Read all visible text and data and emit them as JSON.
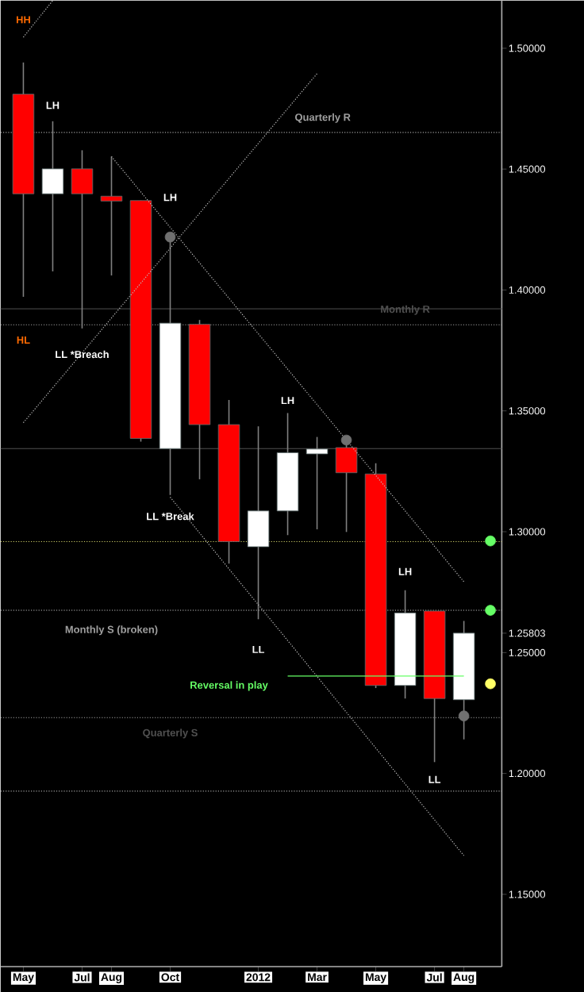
{
  "chart_data": {
    "type": "candlestick",
    "x": [
      "2011-05",
      "2011-06",
      "2011-07",
      "2011-08",
      "2011-09",
      "2011-10",
      "2011-11",
      "2011-12",
      "2012-01",
      "2012-02",
      "2012-03",
      "2012-04",
      "2012-05",
      "2012-06",
      "2012-07",
      "2012-08"
    ],
    "ohlc": [
      [
        1.481,
        1.4941,
        1.3972,
        1.4398
      ],
      [
        1.4398,
        1.4698,
        1.4077,
        1.4501
      ],
      [
        1.4501,
        1.4578,
        1.3841,
        1.4398
      ],
      [
        1.4388,
        1.4552,
        1.406,
        1.4368
      ],
      [
        1.437,
        1.437,
        1.3373,
        1.3386
      ],
      [
        1.3344,
        1.4206,
        1.3152,
        1.3863
      ],
      [
        1.3858,
        1.3876,
        1.3217,
        1.3443
      ],
      [
        1.3443,
        1.3545,
        1.2868,
        1.2959
      ],
      [
        1.2938,
        1.3436,
        1.2638,
        1.3086
      ],
      [
        1.3086,
        1.3491,
        1.2986,
        1.3327
      ],
      [
        1.3322,
        1.3392,
        1.301,
        1.3342
      ],
      [
        1.3348,
        1.3381,
        1.2999,
        1.3244
      ],
      [
        1.3239,
        1.3283,
        1.2353,
        1.2364
      ],
      [
        1.2364,
        1.2758,
        1.231,
        1.2664
      ],
      [
        1.2672,
        1.2672,
        1.2047,
        1.231
      ],
      [
        1.2305,
        1.2631,
        1.2141,
        1.25803
      ]
    ],
    "colors": [
      "#ff0000",
      "#ffffff",
      "#ff0000",
      "#ff0000",
      "#ff0000",
      "#ffffff",
      "#ff0000",
      "#ff0000",
      "#ffffff",
      "#ffffff",
      "#ffffff",
      "#ff0000",
      "#ff0000",
      "#ffffff",
      "#ff0000",
      "#ffffff"
    ],
    "series": [
      {
        "type": "line",
        "color": "#c0c0c0",
        "line_style": "dotted",
        "marker": "none",
        "x": [
          "2011-08",
          "2012-08"
        ],
        "values": [
          1.4552,
          1.2793
        ]
      },
      {
        "type": "line",
        "color": "#c0c0c0",
        "line_style": "dotted",
        "marker": "none",
        "x": [
          "2011-10",
          "2012-08"
        ],
        "values": [
          1.3143,
          1.166
        ]
      },
      {
        "type": "line",
        "color": "#c0c0c0",
        "line_style": "dotted",
        "marker": "none",
        "x": [
          "2011-05",
          "2012-03"
        ],
        "values": [
          1.3451,
          1.4895
        ]
      },
      {
        "type": "line",
        "color": "#c0c0c0",
        "line_style": "dotted",
        "marker": "none",
        "x": [
          "2011-05",
          "2011-06"
        ],
        "values": [
          1.5046,
          1.5197
        ]
      },
      {
        "type": "line",
        "color": "#66ff66",
        "line_style": "solid",
        "marker": "none",
        "x": [
          "2012-02",
          "2012-08"
        ],
        "values": [
          1.2403,
          1.2403
        ]
      },
      {
        "type": "scatter",
        "color": "#707070",
        "x": [
          "2011-10",
          "2012-04",
          "2012-08"
        ],
        "values": [
          1.4219,
          1.3379,
          1.2238
        ]
      },
      {
        "type": "scatter",
        "color": "#66ff66",
        "x": [
          "2012-08-29",
          "2012-08-29"
        ],
        "values": [
          1.2962,
          1.2675
        ]
      },
      {
        "type": "scatter",
        "color": "#ffff66",
        "x": [
          "2012-08-29"
        ],
        "values": [
          1.2371
        ]
      }
    ],
    "ref_lines": [
      {
        "axis": "y",
        "value": 1.4652,
        "color": "#a0a0a0",
        "line_style": "dotted"
      },
      {
        "axis": "y",
        "value": 1.3922,
        "color": "#404040",
        "line_style": "solid"
      },
      {
        "axis": "y",
        "value": 1.3856,
        "color": "#a0a0a0",
        "line_style": "dotted"
      },
      {
        "axis": "y",
        "value": 1.3344,
        "color": "#505050",
        "line_style": "solid"
      },
      {
        "axis": "y",
        "value": 1.2959,
        "color": "#cccc66",
        "line_style": "dotted"
      },
      {
        "axis": "y",
        "value": 1.2675,
        "color": "#c0c0c0",
        "line_style": "dotted"
      },
      {
        "axis": "y",
        "value": 1.2231,
        "color": "#a0a0a0",
        "line_style": "dotted"
      },
      {
        "axis": "y",
        "value": 1.1927,
        "color": "#a0a0a0",
        "line_style": "dotted"
      }
    ],
    "annotations": [
      "HH",
      "LH",
      "LH",
      "HL",
      "LL *Breach",
      "LH",
      "LL *Break",
      "LL",
      "LH",
      "LL",
      "Reversal in play",
      "Quarterly R",
      "Monthly R",
      "Monthly S (broken)",
      "Quarterly S"
    ],
    "xlim": [
      "2011-04-08",
      "2012-09-10"
    ],
    "xticks": [
      {
        "value": "2011-05",
        "label": "May"
      },
      {
        "value": "2011-07",
        "label": "Jul"
      },
      {
        "value": "2011-08",
        "label": "Aug"
      },
      {
        "value": "2011-10",
        "label": "Oct"
      },
      {
        "value": "2012-01",
        "label": "2012"
      },
      {
        "value": "2012-03",
        "label": "Mar"
      },
      {
        "value": "2012-05",
        "label": "May"
      },
      {
        "value": "2012-07",
        "label": "Jul"
      },
      {
        "value": "2012-08",
        "label": "Aug"
      }
    ],
    "ylim": [
      1.1201,
      1.5197
    ],
    "yticks": [
      {
        "value": 1.15,
        "label": "1.15000"
      },
      {
        "value": 1.2,
        "label": "1.20000"
      },
      {
        "value": 1.25,
        "label": "1.25000"
      },
      1.25803,
      {
        "value": 1.3,
        "label": "1.30000"
      },
      {
        "value": 1.35,
        "label": "1.35000"
      },
      {
        "value": 1.4,
        "label": "1.40000"
      },
      {
        "value": 1.45,
        "label": "1.45000"
      },
      {
        "value": 1.5,
        "label": "1.50000"
      }
    ]
  }
}
